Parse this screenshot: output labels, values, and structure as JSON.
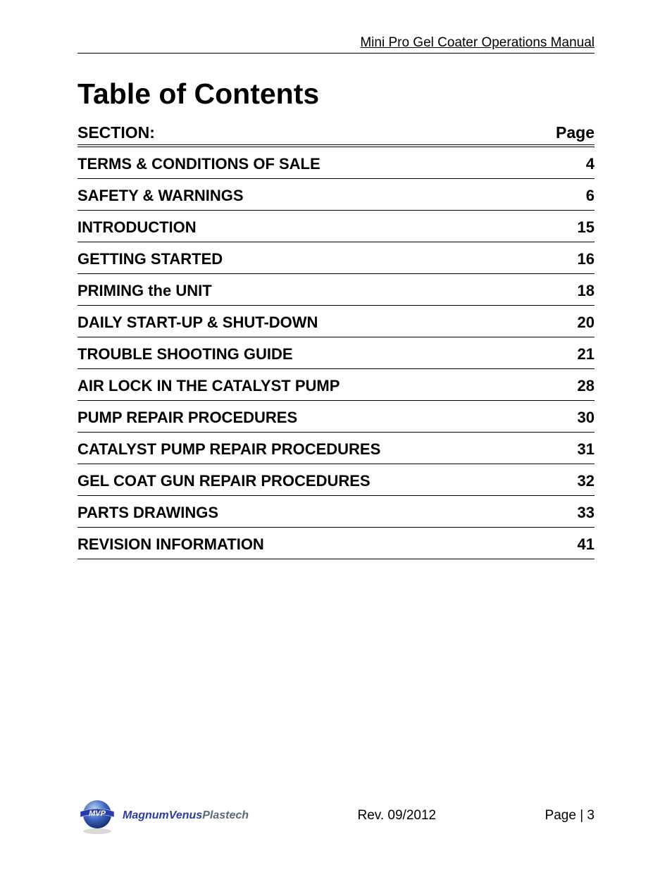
{
  "header": {
    "doc_title": "Mini Pro Gel Coater Operations Manual"
  },
  "title": "Table of Contents",
  "toc": {
    "head_section": "SECTION:",
    "head_page": "Page",
    "rows": [
      {
        "section": "TERMS & CONDITIONS OF SALE",
        "page": "4"
      },
      {
        "section": "SAFETY & WARNINGS",
        "page": "6"
      },
      {
        "section": "INTRODUCTION",
        "page": "15"
      },
      {
        "section": "GETTING STARTED",
        "page": "16"
      },
      {
        "section": "PRIMING the UNIT",
        "page": "18"
      },
      {
        "section": "DAILY START-UP & SHUT-DOWN",
        "page": "20"
      },
      {
        "section": "TROUBLE SHOOTING GUIDE",
        "page": "21"
      },
      {
        "section": "AIR LOCK IN THE CATALYST PUMP",
        "page": "28"
      },
      {
        "section": "PUMP REPAIR PROCEDURES",
        "page": "30"
      },
      {
        "section": "CATALYST PUMP REPAIR PROCEDURES",
        "page": "31"
      },
      {
        "section": "GEL COAT GUN REPAIR PROCEDURES",
        "page": "32"
      },
      {
        "section": "PARTS DRAWINGS",
        "page": "33"
      },
      {
        "section": "REVISION INFORMATION",
        "page": "41"
      }
    ]
  },
  "footer": {
    "logo_brand1": "Magnum",
    "logo_brand2": "Venus",
    "logo_brand3": "Plastech",
    "revision": "Rev. 09/2012",
    "page_label": "Page | 3"
  },
  "style": {
    "text_color": "#000000",
    "bg_color": "#ffffff",
    "title_fontsize": 41,
    "head_fontsize": 23,
    "row_fontsize": 22,
    "header_fontsize": 19,
    "footer_fontsize": 19,
    "logo_globe_colors": {
      "top": "#b9d6f2",
      "mid": "#3e66c4",
      "dark": "#1a2e6e"
    },
    "logo_banner_color": "#2a3aa8",
    "logo_text_color_mv": "#2a3aa8",
    "logo_text_color_p": "#5b6a78"
  }
}
